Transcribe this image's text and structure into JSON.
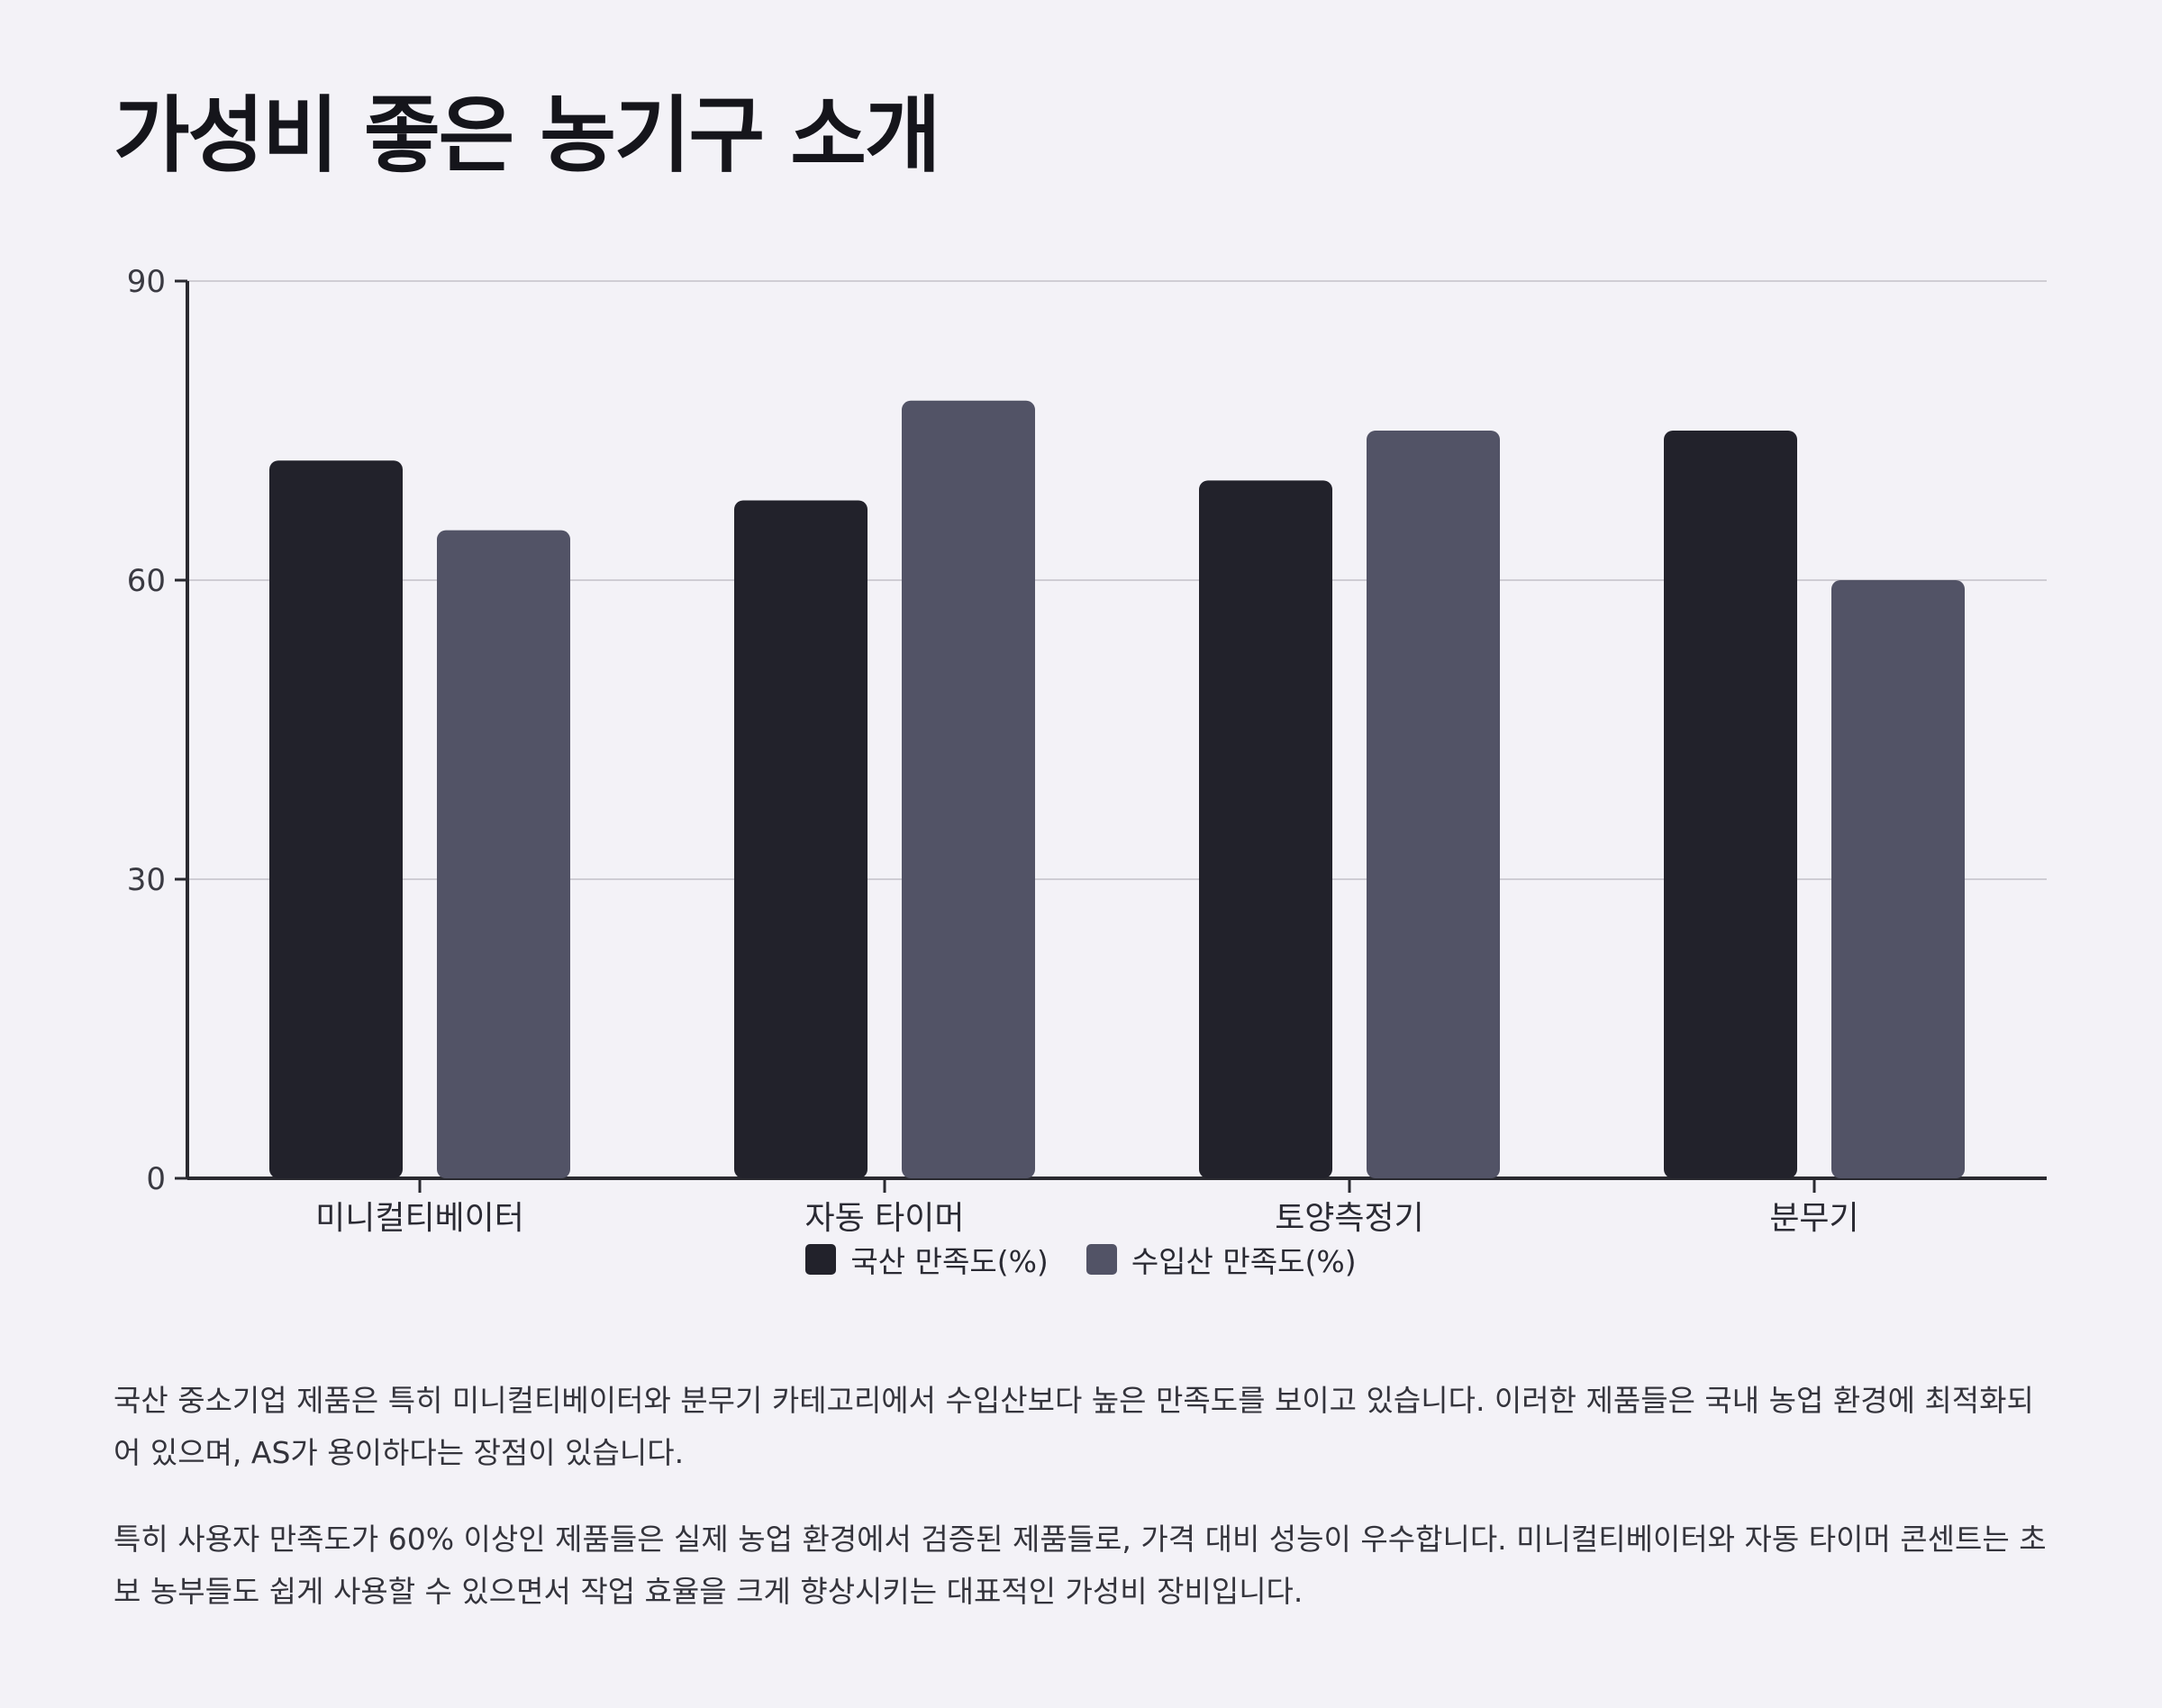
{
  "title": "가성비 좋은 농기구 소개",
  "chart_data": {
    "type": "bar",
    "categories": [
      "미니컬티베이터",
      "자동 타이머",
      "토양측정기",
      "분무기"
    ],
    "series": [
      {
        "name": "국산 만족도(%)",
        "values": [
          72,
          68,
          70,
          75
        ],
        "color": "#22222b"
      },
      {
        "name": "수입산 만족도(%)",
        "values": [
          65,
          78,
          75,
          60
        ],
        "color": "#525366"
      }
    ],
    "ylim": [
      0,
      90
    ],
    "yticks": [
      0,
      30,
      60,
      90
    ],
    "grid": true,
    "legend_position": "bottom-center"
  },
  "paragraphs": [
    "국산 중소기업 제품은 특히 미니컬티베이터와 분무기 카테고리에서 수입산보다 높은 만족도를 보이고 있습니다. 이러한 제품들은 국내 농업 환경에 최적화되어 있으며, AS가 용이하다는 장점이 있습니다.",
    "특히 사용자 만족도가 60% 이상인 제품들은 실제 농업 환경에서 검증된 제품들로, 가격 대비 성능이 우수합니다. 미니컬티베이터와 자동 타이머 콘센트는 초보 농부들도 쉽게 사용할 수 있으면서 작업 효율을 크게 향상시키는 대표적인 가성비 장비입니다."
  ]
}
